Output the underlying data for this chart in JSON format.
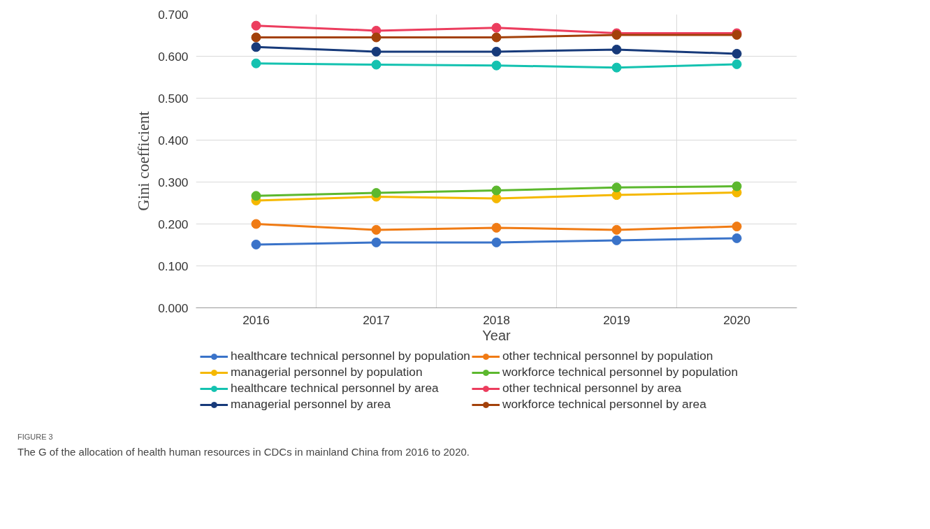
{
  "chart_data": {
    "type": "line",
    "xlabel": "Year",
    "ylabel": "Gini coefficient",
    "categories": [
      "2016",
      "2017",
      "2018",
      "2019",
      "2020"
    ],
    "series": [
      {
        "name": "healthcare technical personnel by population",
        "color": "#3a73c9",
        "values": [
          0.151,
          0.156,
          0.156,
          0.161,
          0.166
        ]
      },
      {
        "name": "other technical personnel by population",
        "color": "#f07b14",
        "values": [
          0.2,
          0.186,
          0.191,
          0.186,
          0.194
        ]
      },
      {
        "name": "managerial personnel by population",
        "color": "#f5b800",
        "values": [
          0.256,
          0.265,
          0.261,
          0.269,
          0.275
        ]
      },
      {
        "name": "workforce technical personnel by population",
        "color": "#5cb82e",
        "values": [
          0.267,
          0.274,
          0.28,
          0.287,
          0.29
        ]
      },
      {
        "name": "healthcare technical personnel by area",
        "color": "#14c2b0",
        "values": [
          0.583,
          0.58,
          0.578,
          0.573,
          0.581
        ]
      },
      {
        "name": "other technical personnel by area",
        "color": "#ec3d5e",
        "values": [
          0.673,
          0.661,
          0.668,
          0.655,
          0.655
        ]
      },
      {
        "name": "managerial personnel by area",
        "color": "#173a7a",
        "values": [
          0.622,
          0.611,
          0.611,
          0.616,
          0.606
        ]
      },
      {
        "name": "workforce technical personnel by area",
        "color": "#a3410a",
        "values": [
          0.645,
          0.645,
          0.645,
          0.651,
          0.651
        ]
      }
    ],
    "ylim": [
      0,
      0.7
    ],
    "yticks": [
      {
        "value": 0,
        "label": "0.000"
      },
      {
        "value": 0.1,
        "label": "0.100"
      },
      {
        "value": 0.2,
        "label": "0.200"
      },
      {
        "value": 0.3,
        "label": "0.300"
      },
      {
        "value": 0.4,
        "label": "0.400"
      },
      {
        "value": 0.5,
        "label": "0.500"
      },
      {
        "value": 0.6,
        "label": "0.600"
      },
      {
        "value": 0.7,
        "label": "0.700"
      }
    ],
    "grid": true,
    "legend": "bottom",
    "marker": "circle",
    "line_style": "solid",
    "annotations": [
      "FIGURE 3",
      "The G of the allocation of health human resources in CDCs in mainland China from 2016 to 2020."
    ]
  }
}
